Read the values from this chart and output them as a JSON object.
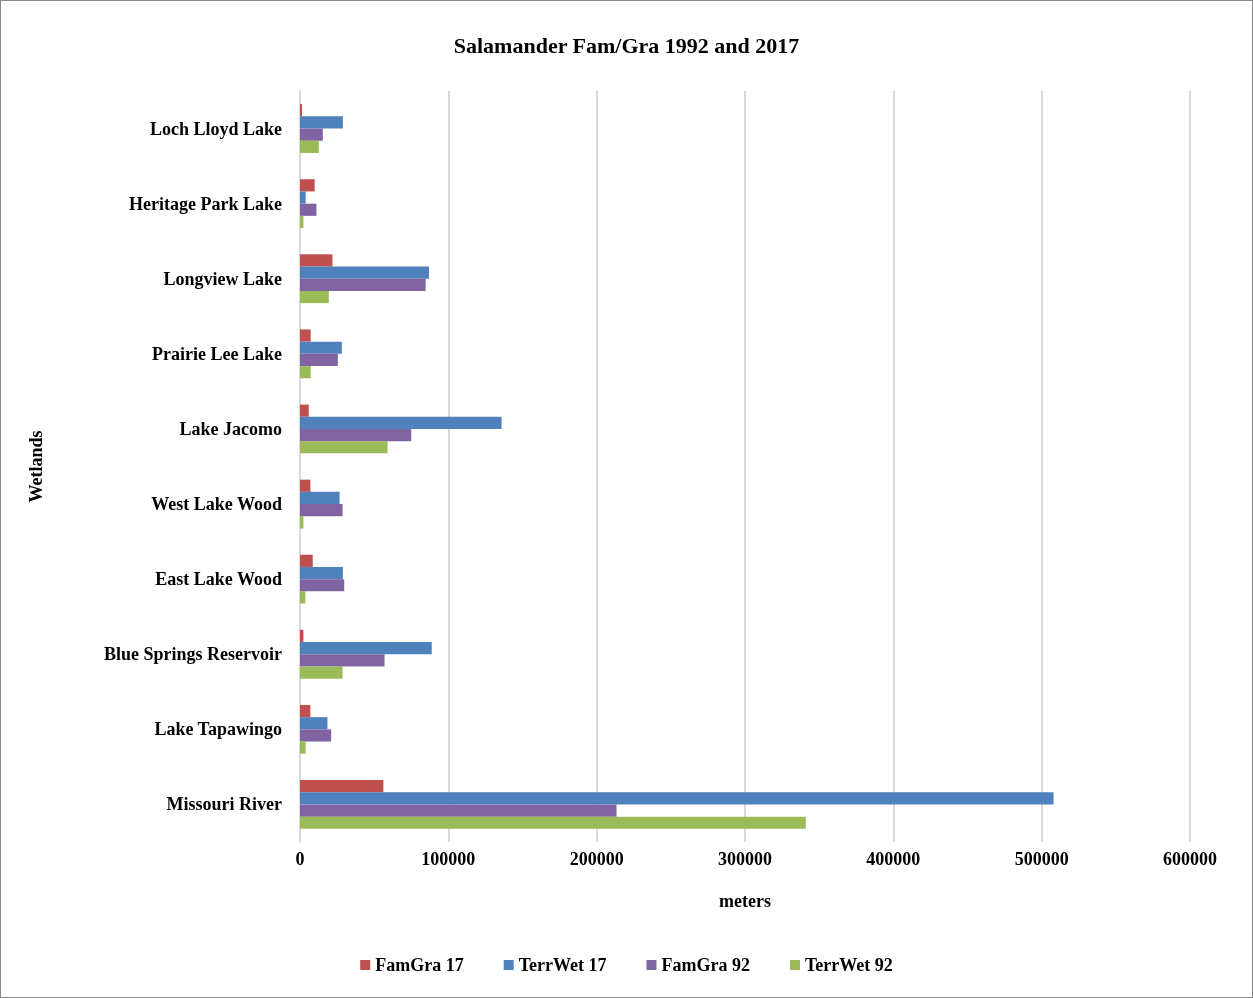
{
  "chart_data": {
    "type": "bar",
    "orientation": "horizontal",
    "title": "Salamander Fam/Gra 1992 and 2017",
    "xlabel": "meters",
    "ylabel": "Wetlands",
    "categories": [
      "Loch Lloyd Lake",
      "Heritage Park Lake",
      "Longview Lake",
      "Prairie Lee Lake",
      "Lake Jacomo",
      "West Lake Wood",
      "East Lake Wood",
      "Blue Springs Reservoir",
      "Lake Tapawingo",
      "Missouri River"
    ],
    "series": [
      {
        "name": "FamGra 17",
        "color": "#c0504d",
        "values": [
          1400,
          9900,
          21900,
          7200,
          5900,
          7000,
          8600,
          2300,
          7000,
          56200
        ]
      },
      {
        "name": "TerrWet 17",
        "color": "#4f81bd",
        "values": [
          28900,
          3800,
          87000,
          28200,
          135900,
          26700,
          28900,
          88800,
          18500,
          508000
        ]
      },
      {
        "name": "FamGra 92",
        "color": "#8064a2",
        "values": [
          15400,
          11100,
          84700,
          25500,
          75000,
          28700,
          29800,
          57000,
          21000,
          213400
        ]
      },
      {
        "name": "TerrWet 92",
        "color": "#9bbb59",
        "values": [
          12700,
          2300,
          19400,
          7200,
          59000,
          2300,
          3600,
          28700,
          3800,
          341000
        ]
      }
    ],
    "xlim": [
      0,
      600000
    ],
    "xticks": [
      0,
      100000,
      200000,
      300000,
      400000,
      500000,
      600000
    ],
    "grid": "x",
    "legend": "bottom"
  }
}
